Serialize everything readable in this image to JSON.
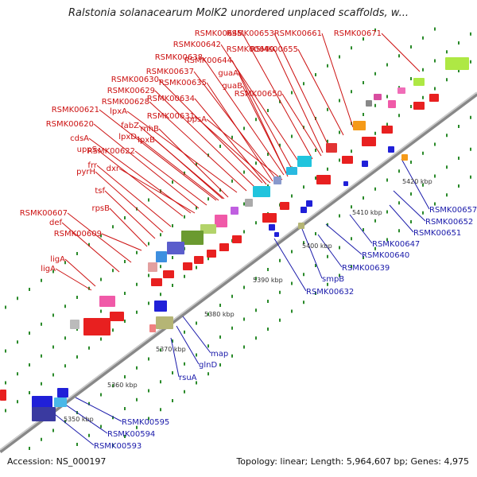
{
  "title": "Ralstonia solanacearum MolK2 unordered unplaced scaffolds, w...",
  "footer": {
    "accession": "Accession: NS_000197",
    "summary": "Topology: linear; Length: 5,964,607 bp; Genes: 4,975"
  },
  "colors": {
    "upper_label": "#cc1111",
    "lower_label": "#1a1aaa",
    "backbone": "#888888",
    "tick": "#2a8a2a"
  },
  "kbp_labels": [
    "5350 kbp",
    "5360 kbp",
    "5370 kbp",
    "5380 kbp",
    "5390 kbp",
    "5400 kbp",
    "5410 kbp",
    "5420 kbp"
  ],
  "upper_labels": [
    "RSMK00645",
    "RSMK00653",
    "RSMK00661",
    "RSMK00671",
    "RSMK00642",
    "RSMK00649",
    "RSMK00655",
    "RSMK00638",
    "RSMK00644",
    "RSMK00637",
    "guaA",
    "RSMK00630",
    "RSMK00635",
    "guaB",
    "RSMK00650",
    "RSMK00629",
    "RSMK00634",
    "RSMK00628",
    "lpxA",
    "RSMK00631",
    "ppsA",
    "RSMK00621",
    "fabZ",
    "rnhB",
    "RSMK00620",
    "lpxD",
    "cdsA",
    "lpxB",
    "uppS",
    "RSMK00622",
    "frr",
    "dxr",
    "pyrH",
    "tsf",
    "rpsB",
    "RSMK00607",
    "def",
    "RSMK00609",
    "ligA",
    "ligA"
  ],
  "lower_labels": [
    "RSMK00657",
    "RSMK00652",
    "RSMK00651",
    "RSMK00647",
    "RSMK00640",
    "RSMK00639",
    "smpB",
    "RSMK00632",
    "map",
    "glnD",
    "rsuA",
    "RSMK00595",
    "RSMK00594",
    "RSMK00593"
  ]
}
